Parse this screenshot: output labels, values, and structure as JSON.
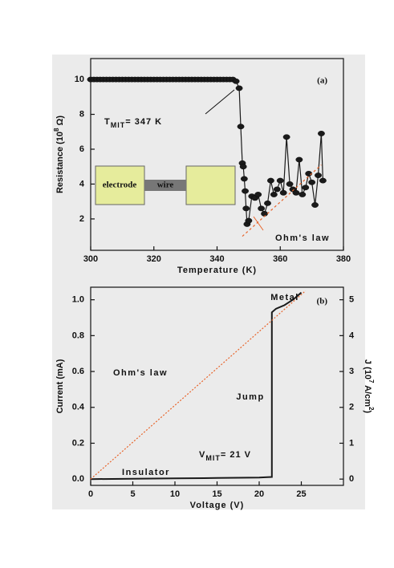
{
  "chart_data": [
    {
      "type": "scatter",
      "label": "(a)",
      "x_label": "Temperature (K)",
      "y_label": {
        "text": "Resistance (10",
        "sup": "8",
        "tail": " Ω)"
      },
      "xlim": [
        300,
        380
      ],
      "xticks": [
        300,
        320,
        340,
        360,
        380
      ],
      "ylim": [
        0.2,
        11.2
      ],
      "yticks": [
        2,
        4,
        6,
        8,
        10
      ],
      "series": [
        {
          "color": "#1a1a1a",
          "markers": true,
          "x": [
            300,
            301,
            302,
            303,
            304,
            305,
            306,
            307,
            308,
            309,
            310,
            311,
            312,
            313,
            314,
            315,
            316,
            317,
            318,
            319,
            320,
            321,
            322,
            323,
            324,
            325,
            326,
            327,
            328,
            329,
            330,
            331,
            332,
            333,
            334,
            335,
            336,
            337,
            338,
            339,
            340,
            341,
            342,
            343,
            344,
            345,
            346,
            347,
            347.5,
            348,
            348.3,
            348.6,
            348.9,
            349.2,
            349.5,
            350,
            351,
            352,
            353,
            354,
            355,
            356,
            357,
            358,
            359,
            360,
            361,
            362,
            363,
            364,
            365,
            366,
            367,
            368,
            369,
            370,
            371,
            372,
            373,
            373.5
          ],
          "values": [
            10,
            10,
            10,
            10,
            10,
            10,
            10,
            10,
            10,
            10,
            10,
            10,
            10,
            10,
            10,
            10,
            10,
            10,
            10,
            10,
            10,
            10,
            10,
            10,
            10,
            10,
            10,
            10,
            10,
            10,
            10,
            10,
            10,
            10,
            10,
            10,
            10,
            10,
            10,
            10,
            10,
            10,
            10,
            10,
            10,
            10,
            9.9,
            9.5,
            7.3,
            5.2,
            5.0,
            4.3,
            3.6,
            2.6,
            1.7,
            1.9,
            3.3,
            3.2,
            3.4,
            2.6,
            2.3,
            2.9,
            4.2,
            3.4,
            3.7,
            4.2,
            3.5,
            6.7,
            4.0,
            3.7,
            3.5,
            5.4,
            3.4,
            3.8,
            4.6,
            4.1,
            2.8,
            4.5,
            6.9,
            4.2
          ]
        },
        {
          "name": "Ohm's law",
          "color": "#e8642a",
          "dash": "3,3",
          "x": [
            348,
            373
          ],
          "values": [
            1.0,
            5.1
          ]
        }
      ],
      "annotations": {
        "tmit": {
          "main": "T",
          "sub": "MIT",
          "rest": "= 347 K"
        },
        "electrode": "electrode",
        "wire": "wire"
      }
    },
    {
      "type": "line",
      "label": "(b)",
      "x_label": "Voltage (V)",
      "y_label": {
        "text": "Current (mA)"
      },
      "y2_label": {
        "text": "J (10",
        "sup": "7",
        "mid": " A/cm",
        "sup2": "2",
        "tail": ")"
      },
      "xlim": [
        0,
        30
      ],
      "xticks": [
        0,
        5,
        10,
        15,
        20,
        25
      ],
      "ylim": [
        -0.035,
        1.07
      ],
      "yticks": [
        {
          "value": 0,
          "label": "0.0"
        },
        0.2,
        0.4,
        0.6,
        0.8,
        {
          "value": 1,
          "label": "1.0"
        }
      ],
      "y2lim": [
        -0.175,
        5.35
      ],
      "y2ticks": [
        0,
        1,
        2,
        3,
        4,
        5
      ],
      "series": [
        {
          "color": "#1a1a1a",
          "width": 2,
          "x": [
            0,
            5,
            10,
            15,
            20,
            21,
            21.5,
            21.5,
            22,
            23,
            24,
            25
          ],
          "values": [
            0,
            0.002,
            0.004,
            0.006,
            0.009,
            0.011,
            0.012,
            0.93,
            0.95,
            0.97,
            1.0,
            1.04
          ]
        },
        {
          "name": "Ohm's law",
          "color": "#e8642a",
          "dash": "2,2",
          "x": [
            0,
            25.5
          ],
          "values": [
            0,
            1.05
          ]
        }
      ],
      "annotations": {
        "metal": "Metal",
        "jump": "Jump",
        "vmit": {
          "main": "V",
          "sub": "MIT",
          "rest": "= 21 V"
        },
        "insulator": "Insulator"
      }
    }
  ]
}
